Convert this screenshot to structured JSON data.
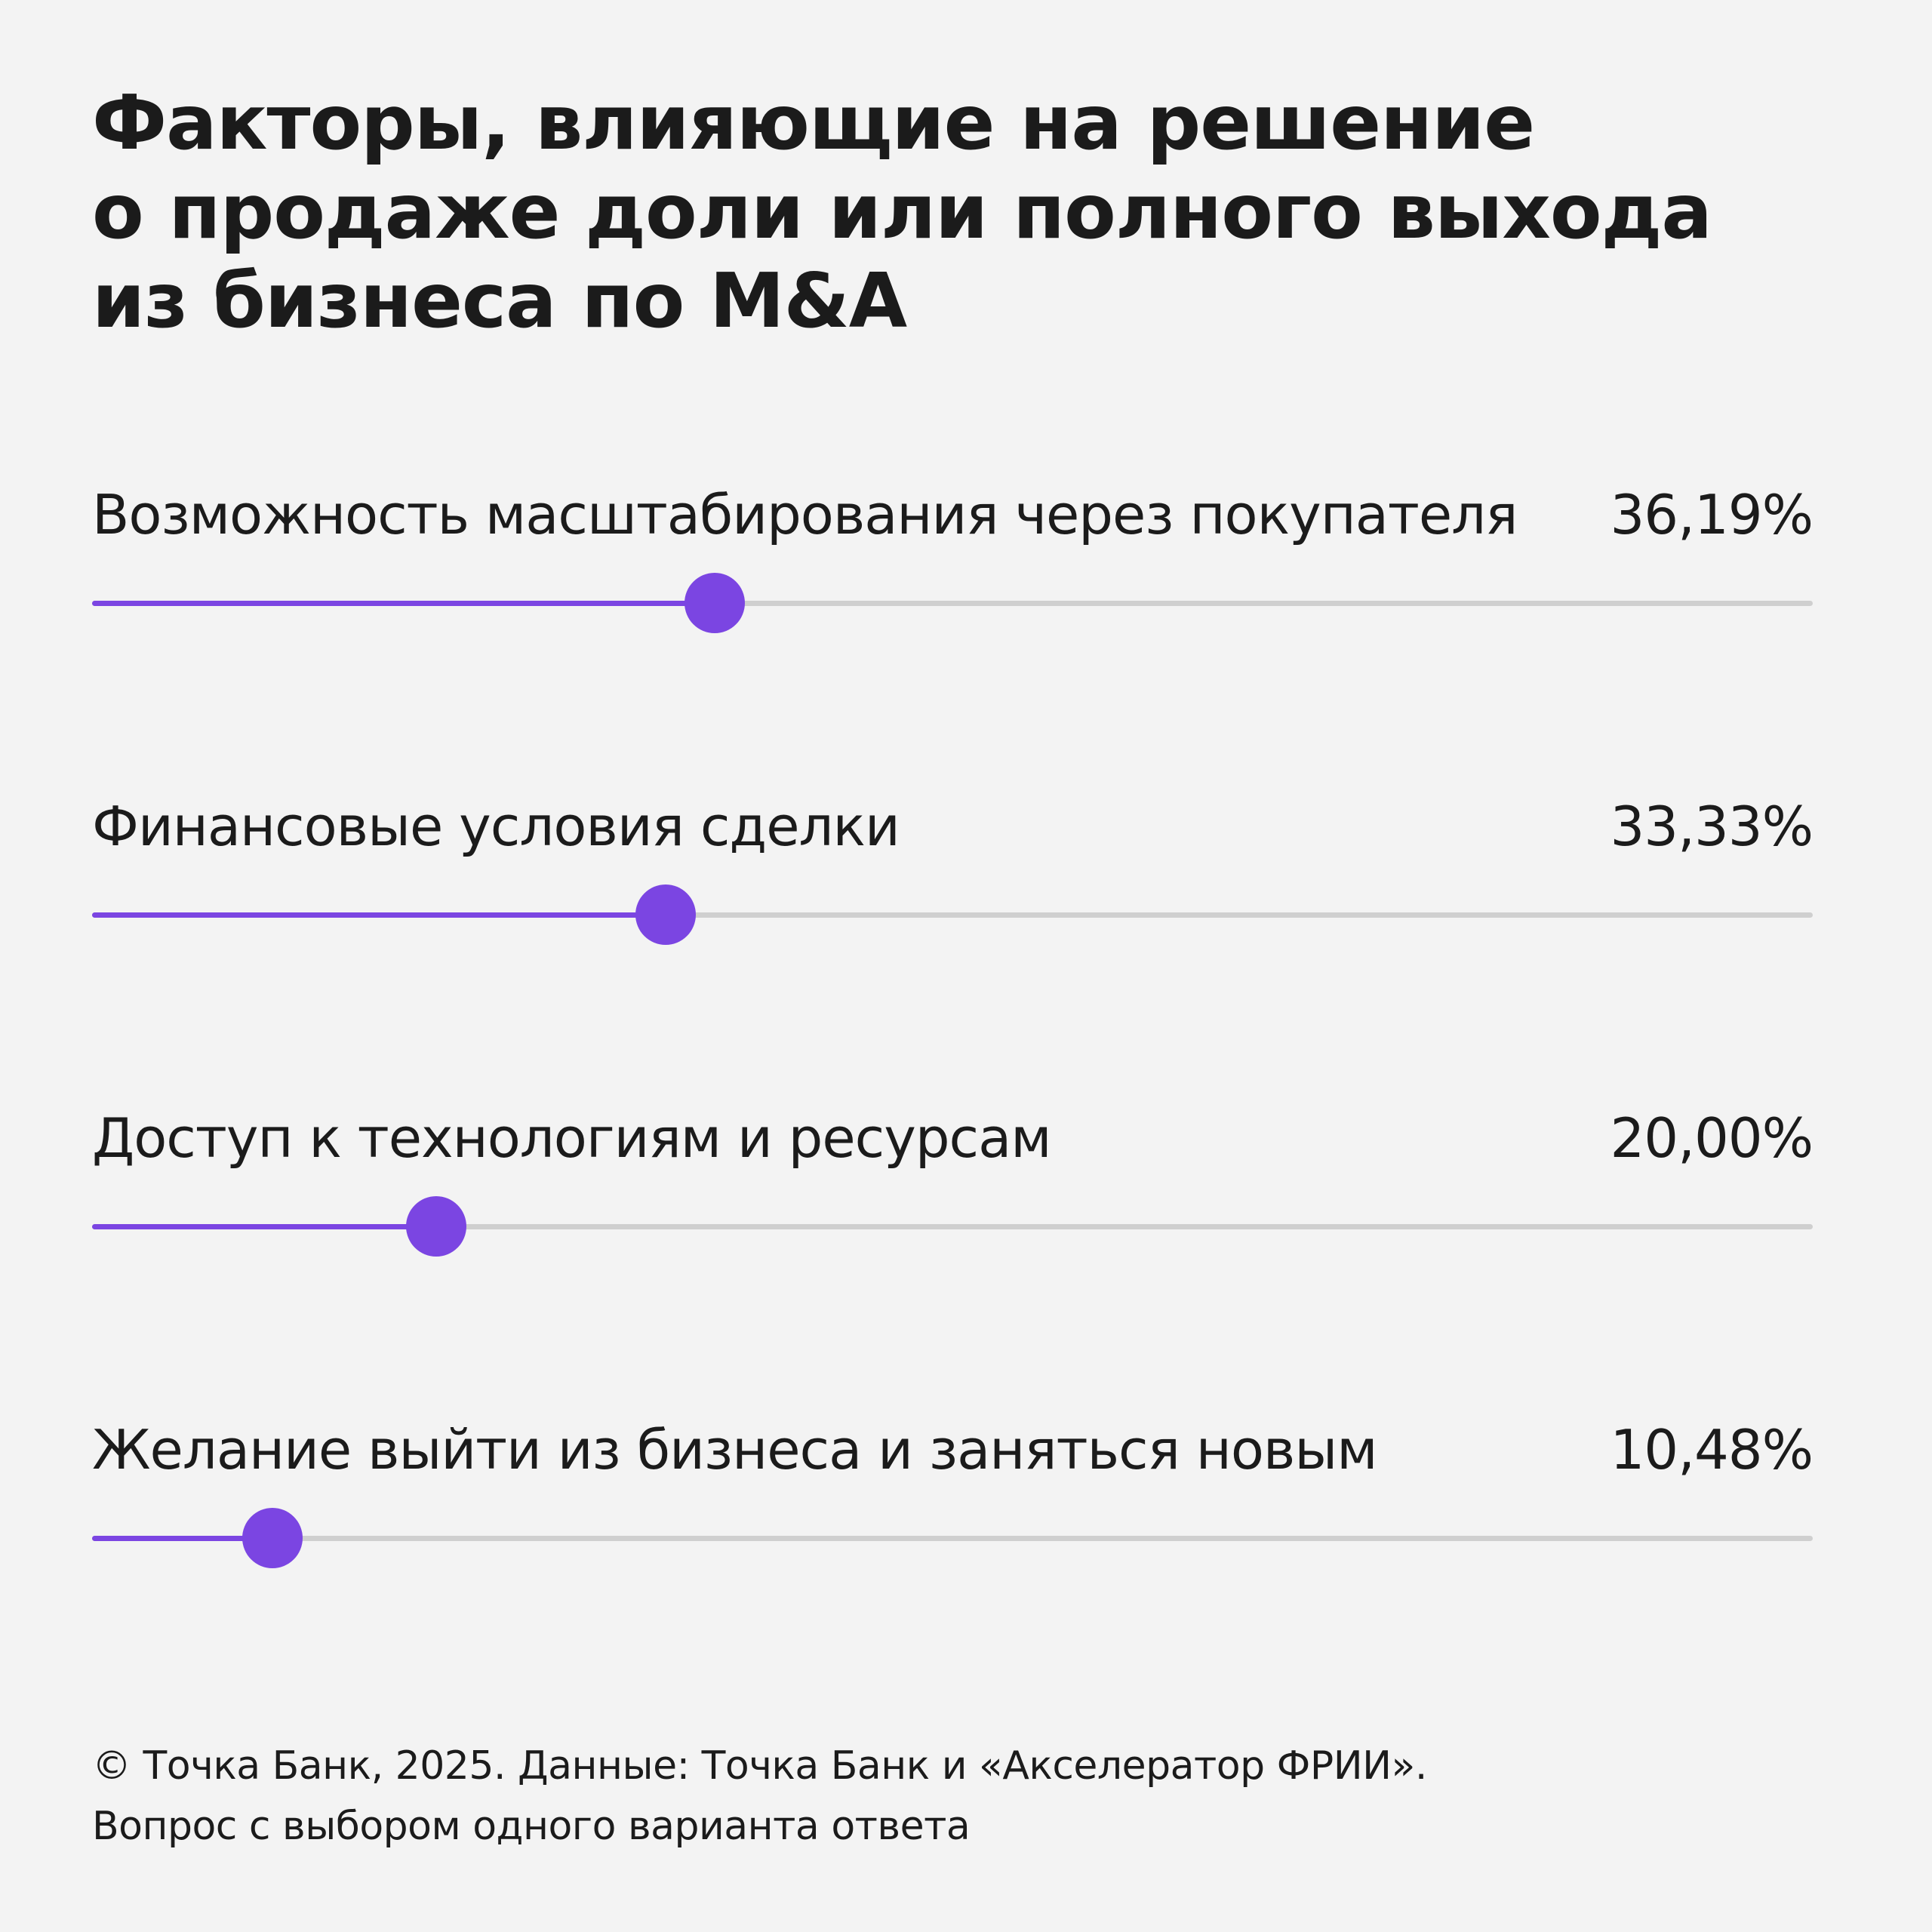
{
  "title_lines": [
    "Факторы, влияющие на решение",
    "о продаже доли или полного выхода",
    "из бизнеса по M&A"
  ],
  "footnote_lines": [
    "© Точка Банк, 2025. Данные: Точка Банк и «Акселератор ФРИИ».",
    "Вопрос с выбором одного варианта ответа"
  ],
  "colors": {
    "accent": "#7b45e2",
    "track": "#cfcfcf",
    "background": "#f3f3f3",
    "text": "#1b1b1b"
  },
  "chart_data": {
    "type": "bar",
    "title": "Факторы, влияющие на решение о продаже доли или полного выхода из бизнеса по M&A",
    "xlim": [
      0,
      100
    ],
    "categories": [
      "Возможность масштабирования через покупателя",
      "Финансовые условия сделки",
      "Доступ к технологиям и ресурсам",
      "Желание выйти из бизнеса и заняться новым"
    ],
    "values": [
      36.19,
      33.33,
      20.0,
      10.48
    ],
    "value_labels": [
      "36,19%",
      "33,33%",
      "20,00%",
      "10,48%"
    ]
  }
}
